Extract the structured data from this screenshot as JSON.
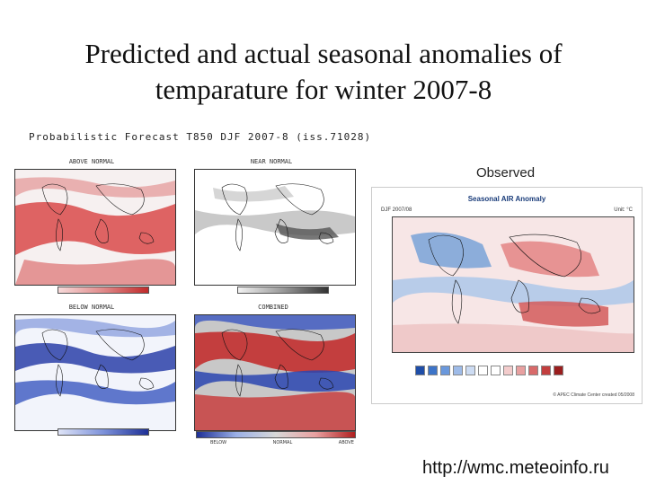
{
  "slide": {
    "title_line1": "Predicted and actual seasonal anomalies of",
    "title_line2": "temparature for winter 2007-8",
    "subtitle": "Probabilistic Forecast T850 DJF 2007-8 (iss.71028)",
    "url": "http://wmc.meteoinfo.ru"
  },
  "forecast_panels": [
    {
      "title": "ABOVE NORMAL"
    },
    {
      "title": "NEAR NORMAL"
    },
    {
      "title": "BELOW NORMAL"
    },
    {
      "title": "COMBINED"
    }
  ],
  "combined_bar": {
    "left": "BELOW",
    "middle": "NORMAL",
    "right": "ABOVE"
  },
  "observed": {
    "label": "Observed",
    "title": "Seasonal AIR Anomaly",
    "meta_left": "DJF 2007/08",
    "meta_right": "Unit: °C",
    "footer": "© APEC Climate Center    created 05/2008"
  },
  "colors": {
    "warm": "#cc3333",
    "cold": "#2244aa",
    "neutral": "#888888"
  }
}
